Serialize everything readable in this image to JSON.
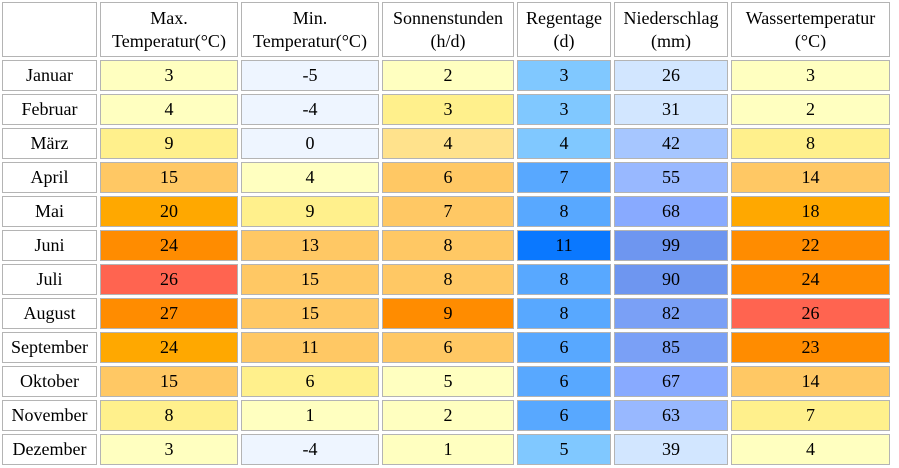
{
  "headers": [
    {
      "line1": "",
      "line2": ""
    },
    {
      "line1": "Max.",
      "line2": "Temperatur(°C)"
    },
    {
      "line1": "Min.",
      "line2": "Temperatur(°C)"
    },
    {
      "line1": "Sonnenstunden",
      "line2": "(h/d)"
    },
    {
      "line1": "Regentage",
      "line2": "(d)"
    },
    {
      "line1": "Niederschlag",
      "line2": "(mm)"
    },
    {
      "line1": "Wassertemperatur",
      "line2": "(°C)"
    }
  ],
  "rows": [
    {
      "month": "Januar",
      "cells": [
        {
          "value": "3",
          "color": "#ffffc0"
        },
        {
          "value": "-5",
          "color": "#eef5ff"
        },
        {
          "value": "2",
          "color": "#ffffc0"
        },
        {
          "value": "3",
          "color": "#80c8ff"
        },
        {
          "value": "26",
          "color": "#d2e6ff"
        },
        {
          "value": "3",
          "color": "#ffffc0"
        }
      ]
    },
    {
      "month": "Februar",
      "cells": [
        {
          "value": "4",
          "color": "#ffffc0"
        },
        {
          "value": "-4",
          "color": "#eef5ff"
        },
        {
          "value": "3",
          "color": "#fff08c"
        },
        {
          "value": "3",
          "color": "#80c8ff"
        },
        {
          "value": "31",
          "color": "#d2e6ff"
        },
        {
          "value": "2",
          "color": "#ffffc0"
        }
      ]
    },
    {
      "month": "März",
      "cells": [
        {
          "value": "9",
          "color": "#fff08c"
        },
        {
          "value": "0",
          "color": "#eef5ff"
        },
        {
          "value": "4",
          "color": "#ffe28c"
        },
        {
          "value": "4",
          "color": "#80c8ff"
        },
        {
          "value": "42",
          "color": "#a6c6ff"
        },
        {
          "value": "8",
          "color": "#fff08c"
        }
      ]
    },
    {
      "month": "April",
      "cells": [
        {
          "value": "15",
          "color": "#ffc864"
        },
        {
          "value": "4",
          "color": "#ffffc0"
        },
        {
          "value": "6",
          "color": "#ffc864"
        },
        {
          "value": "7",
          "color": "#58a8ff"
        },
        {
          "value": "55",
          "color": "#98b8ff"
        },
        {
          "value": "14",
          "color": "#ffc864"
        }
      ]
    },
    {
      "month": "Mai",
      "cells": [
        {
          "value": "20",
          "color": "#ffa800"
        },
        {
          "value": "9",
          "color": "#fff08c"
        },
        {
          "value": "7",
          "color": "#ffc864"
        },
        {
          "value": "8",
          "color": "#58a8ff"
        },
        {
          "value": "68",
          "color": "#88aaff"
        },
        {
          "value": "18",
          "color": "#ffa800"
        }
      ]
    },
    {
      "month": "Juni",
      "cells": [
        {
          "value": "24",
          "color": "#ff8c00"
        },
        {
          "value": "13",
          "color": "#ffc864"
        },
        {
          "value": "8",
          "color": "#ffc864"
        },
        {
          "value": "11",
          "color": "#0a78ff"
        },
        {
          "value": "99",
          "color": "#6e96f0"
        },
        {
          "value": "22",
          "color": "#ff8c00"
        }
      ]
    },
    {
      "month": "Juli",
      "cells": [
        {
          "value": "26",
          "color": "#ff6450"
        },
        {
          "value": "15",
          "color": "#ffc864"
        },
        {
          "value": "8",
          "color": "#ffc864"
        },
        {
          "value": "8",
          "color": "#58a8ff"
        },
        {
          "value": "90",
          "color": "#6e96f0"
        },
        {
          "value": "24",
          "color": "#ff8c00"
        }
      ]
    },
    {
      "month": "August",
      "cells": [
        {
          "value": "27",
          "color": "#ff8c00"
        },
        {
          "value": "15",
          "color": "#ffc864"
        },
        {
          "value": "9",
          "color": "#ff8c00"
        },
        {
          "value": "8",
          "color": "#58a8ff"
        },
        {
          "value": "82",
          "color": "#7aa0f6"
        },
        {
          "value": "26",
          "color": "#ff6450"
        }
      ]
    },
    {
      "month": "September",
      "cells": [
        {
          "value": "24",
          "color": "#ffa800"
        },
        {
          "value": "11",
          "color": "#ffc864"
        },
        {
          "value": "6",
          "color": "#ffc864"
        },
        {
          "value": "6",
          "color": "#58a8ff"
        },
        {
          "value": "85",
          "color": "#7aa0f6"
        },
        {
          "value": "23",
          "color": "#ff8c00"
        }
      ]
    },
    {
      "month": "Oktober",
      "cells": [
        {
          "value": "15",
          "color": "#ffc864"
        },
        {
          "value": "6",
          "color": "#fff08c"
        },
        {
          "value": "5",
          "color": "#ffffc0"
        },
        {
          "value": "6",
          "color": "#58a8ff"
        },
        {
          "value": "67",
          "color": "#88aaff"
        },
        {
          "value": "14",
          "color": "#ffc864"
        }
      ]
    },
    {
      "month": "November",
      "cells": [
        {
          "value": "8",
          "color": "#fff08c"
        },
        {
          "value": "1",
          "color": "#ffffc0"
        },
        {
          "value": "2",
          "color": "#ffffc0"
        },
        {
          "value": "6",
          "color": "#58a8ff"
        },
        {
          "value": "63",
          "color": "#98b8ff"
        },
        {
          "value": "7",
          "color": "#fff08c"
        }
      ]
    },
    {
      "month": "Dezember",
      "cells": [
        {
          "value": "3",
          "color": "#ffffc0"
        },
        {
          "value": "-4",
          "color": "#eef5ff"
        },
        {
          "value": "1",
          "color": "#ffffc0"
        },
        {
          "value": "5",
          "color": "#80c8ff"
        },
        {
          "value": "39",
          "color": "#d2e6ff"
        },
        {
          "value": "4",
          "color": "#ffffc0"
        }
      ]
    }
  ]
}
